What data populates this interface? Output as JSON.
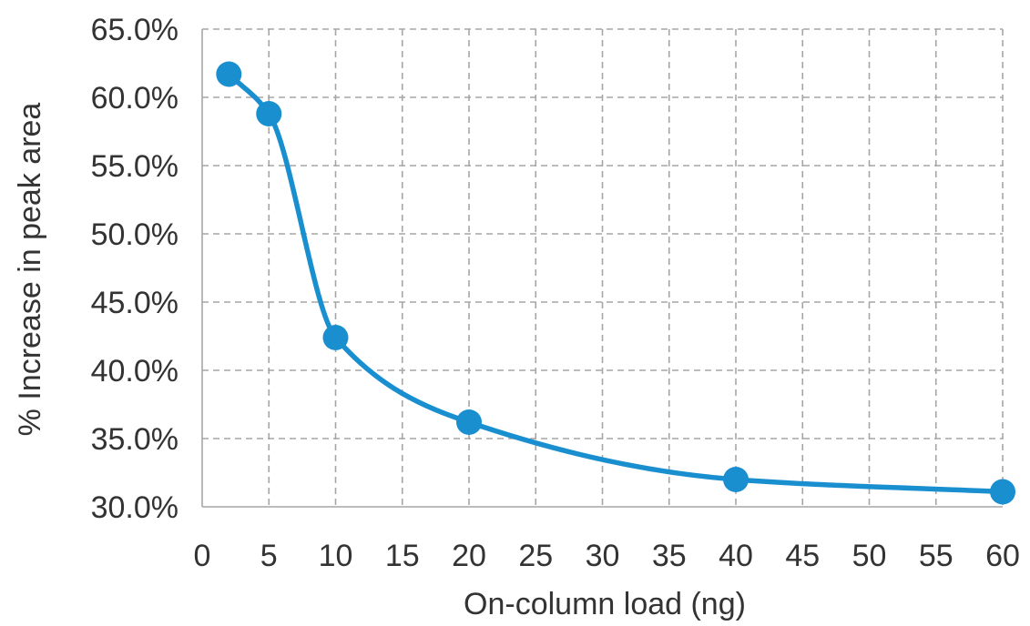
{
  "chart_data": {
    "type": "line",
    "title": "",
    "xlabel": "On-column load (ng)",
    "ylabel": "% Increase in peak area",
    "xlim": [
      0,
      60
    ],
    "ylim": [
      0.3,
      0.65
    ],
    "x_ticks": [
      "0",
      "5",
      "10",
      "15",
      "20",
      "25",
      "30",
      "35",
      "40",
      "45",
      "50",
      "55",
      "60"
    ],
    "y_ticks": [
      "30.0%",
      "35.0%",
      "40.0%",
      "45.0%",
      "50.0%",
      "55.0%",
      "60.0%",
      "65.0%"
    ],
    "grid": true,
    "smooth": true,
    "color": "#1a8fd0",
    "series": [
      {
        "x": [
          2,
          5,
          10,
          20,
          40,
          60
        ],
        "y": [
          0.617,
          0.588,
          0.424,
          0.362,
          0.32,
          0.311
        ]
      }
    ]
  }
}
